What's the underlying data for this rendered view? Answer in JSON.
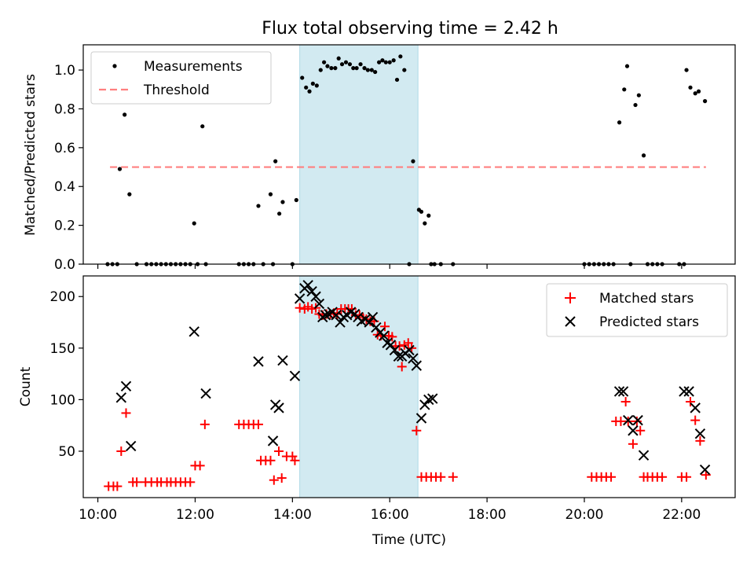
{
  "title": "Flux total observing time = 2.42 h",
  "colors": {
    "measurement": "#000000",
    "threshold": "#ff7f7f",
    "matched": "#ff0000",
    "predicted": "#000000",
    "span": "#add8e6"
  },
  "chart_data": [
    {
      "type": "scatter",
      "ylabel": "Matched/Predicted stars",
      "xlim": [
        9.7,
        23.1
      ],
      "ylim": [
        0,
        1.13
      ],
      "yticks": [
        0.0,
        0.2,
        0.4,
        0.6,
        0.8,
        1.0
      ],
      "ytick_labels": [
        "0.0",
        "0.2",
        "0.4",
        "0.6",
        "0.8",
        "1.0"
      ],
      "shaded_span": [
        14.15,
        16.58
      ],
      "legend": {
        "placement": "top-left",
        "entries": [
          "Measurements",
          "Threshold"
        ]
      },
      "threshold": {
        "x": [
          10.25,
          22.5
        ],
        "y": 0.5
      },
      "series": [
        {
          "name": "Measurements",
          "x": [
            10.2,
            10.3,
            10.4,
            10.45,
            10.55,
            10.65,
            10.8,
            11.0,
            11.1,
            11.2,
            11.3,
            11.4,
            11.5,
            11.6,
            11.7,
            11.8,
            11.9,
            11.98,
            12.05,
            12.15,
            12.22,
            12.9,
            13.0,
            13.1,
            13.2,
            13.3,
            13.4,
            13.55,
            13.6,
            13.65,
            13.73,
            13.8,
            14.0,
            14.08,
            14.2,
            14.28,
            14.35,
            14.42,
            14.5,
            14.58,
            14.65,
            14.72,
            14.8,
            14.88,
            14.95,
            15.02,
            15.1,
            15.18,
            15.25,
            15.32,
            15.4,
            15.48,
            15.55,
            15.63,
            15.7,
            15.78,
            15.85,
            15.92,
            16.0,
            16.08,
            16.15,
            16.22,
            16.3,
            16.4,
            16.48,
            16.6,
            16.65,
            16.72,
            16.8,
            16.85,
            16.92,
            17.05,
            17.3,
            20.0,
            20.1,
            20.2,
            20.3,
            20.4,
            20.5,
            20.6,
            20.72,
            20.82,
            20.88,
            20.95,
            21.05,
            21.12,
            21.22,
            21.3,
            21.4,
            21.5,
            21.6,
            21.95,
            22.05,
            22.1,
            22.18,
            22.28,
            22.35,
            22.48
          ],
          "y": [
            0,
            0,
            0,
            0.49,
            0.77,
            0.36,
            0,
            0,
            0,
            0,
            0,
            0,
            0,
            0,
            0,
            0,
            0,
            0.21,
            0,
            0.71,
            0,
            0,
            0,
            0,
            0,
            0.3,
            0,
            0.36,
            0,
            0.53,
            0.26,
            0.32,
            0,
            0.33,
            0.96,
            0.91,
            0.89,
            0.93,
            0.92,
            1.0,
            1.04,
            1.02,
            1.01,
            1.01,
            1.06,
            1.03,
            1.04,
            1.03,
            1.01,
            1.01,
            1.03,
            1.01,
            1.0,
            1.0,
            0.99,
            1.04,
            1.05,
            1.04,
            1.04,
            1.05,
            0.95,
            1.07,
            1.0,
            0,
            0.53,
            0.28,
            0.27,
            0.21,
            0.25,
            0,
            0,
            0,
            0,
            0,
            0,
            0,
            0,
            0,
            0,
            0,
            0.73,
            0.9,
            1.02,
            0,
            0.82,
            0.87,
            0.56,
            0,
            0,
            0,
            0,
            0,
            0,
            1.0,
            0.91,
            0.88,
            0.89,
            0.84
          ]
        }
      ]
    },
    {
      "type": "scatter",
      "xlabel": "Time (UTC)",
      "ylabel": "Count",
      "xlim": [
        9.7,
        23.1
      ],
      "ylim": [
        5,
        220
      ],
      "yticks": [
        50,
        100,
        150,
        200
      ],
      "ytick_labels": [
        "50",
        "100",
        "150",
        "200"
      ],
      "xticks": [
        10,
        12,
        14,
        16,
        18,
        20,
        22
      ],
      "xtick_labels": [
        "10:00",
        "12:00",
        "14:00",
        "16:00",
        "18:00",
        "20:00",
        "22:00"
      ],
      "shaded_span": [
        14.15,
        16.58
      ],
      "legend": {
        "placement": "top-right",
        "entries": [
          "Matched stars",
          "Predicted stars"
        ]
      },
      "series": [
        {
          "name": "Matched stars",
          "x": [
            10.22,
            10.32,
            10.4,
            10.48,
            10.58,
            10.72,
            10.8,
            10.98,
            11.1,
            11.22,
            11.3,
            11.42,
            11.5,
            11.6,
            11.7,
            11.8,
            11.9,
            12.0,
            12.1,
            12.2,
            12.9,
            13.0,
            13.1,
            13.2,
            13.3,
            13.35,
            13.45,
            13.55,
            13.62,
            13.72,
            13.78,
            13.88,
            14.0,
            14.05,
            14.15,
            14.25,
            14.32,
            14.4,
            14.48,
            14.55,
            14.62,
            14.7,
            14.78,
            14.85,
            14.92,
            15.0,
            15.08,
            15.15,
            15.22,
            15.3,
            15.38,
            15.45,
            15.52,
            15.6,
            15.68,
            15.75,
            15.82,
            15.9,
            15.98,
            16.05,
            16.12,
            16.2,
            16.25,
            16.3,
            16.38,
            16.45,
            16.55,
            16.65,
            16.75,
            16.85,
            16.95,
            17.05,
            17.3,
            20.15,
            20.25,
            20.35,
            20.45,
            20.55,
            20.65,
            20.75,
            20.85,
            20.9,
            21.0,
            21.08,
            21.15,
            21.22,
            21.3,
            21.4,
            21.5,
            21.6,
            22.0,
            22.1,
            22.18,
            22.28,
            22.38,
            22.5
          ],
          "y": [
            16,
            16,
            16,
            50,
            87,
            20,
            20,
            20,
            20,
            20,
            20,
            20,
            20,
            20,
            20,
            20,
            20,
            36,
            36,
            76,
            76,
            76,
            76,
            76,
            76,
            41,
            41,
            41,
            22,
            50,
            24,
            45,
            45,
            41,
            189,
            188,
            190,
            188,
            189,
            183,
            182,
            183,
            183,
            184,
            183,
            188,
            188,
            188,
            188,
            182,
            182,
            180,
            178,
            176,
            176,
            163,
            162,
            171,
            162,
            161,
            152,
            152,
            132,
            153,
            155,
            150,
            70,
            25,
            25,
            25,
            25,
            25,
            25,
            25,
            25,
            25,
            25,
            25,
            79,
            79,
            98,
            79,
            57,
            79,
            70,
            25,
            25,
            25,
            25,
            25,
            25,
            25,
            98,
            80,
            60,
            27
          ]
        },
        {
          "name": "Predicted stars",
          "x": [
            10.48,
            10.58,
            10.68,
            11.98,
            12.22,
            13.3,
            13.6,
            13.65,
            13.72,
            13.8,
            14.05,
            14.15,
            14.25,
            14.32,
            14.4,
            14.48,
            14.55,
            14.62,
            14.68,
            14.75,
            14.82,
            14.9,
            14.98,
            15.05,
            15.12,
            15.2,
            15.28,
            15.35,
            15.42,
            15.5,
            15.58,
            15.65,
            15.72,
            15.8,
            15.88,
            15.95,
            16.02,
            16.1,
            16.18,
            16.25,
            16.32,
            16.4,
            16.48,
            16.55,
            16.65,
            16.72,
            16.8,
            16.88,
            20.72,
            20.8,
            20.9,
            21.0,
            21.1,
            21.22,
            22.05,
            22.15,
            22.28,
            22.38,
            22.48
          ],
          "y": [
            102,
            113,
            55,
            166,
            106,
            137,
            60,
            95,
            92,
            138,
            123,
            198,
            208,
            211,
            205,
            200,
            193,
            180,
            182,
            183,
            185,
            182,
            175,
            180,
            182,
            185,
            183,
            180,
            176,
            178,
            175,
            180,
            170,
            165,
            162,
            155,
            153,
            148,
            142,
            142,
            145,
            148,
            140,
            133,
            82,
            95,
            100,
            101,
            108,
            108,
            80,
            70,
            80,
            46,
            108,
            108,
            92,
            67,
            32
          ]
        }
      ]
    }
  ]
}
